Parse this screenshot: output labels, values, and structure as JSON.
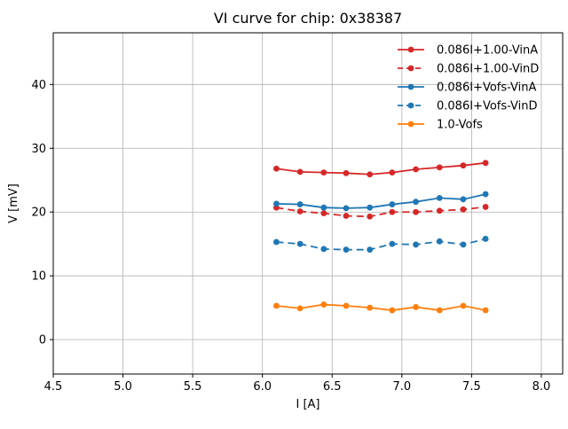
{
  "chart_data": {
    "type": "line",
    "title": "VI curve for chip: 0x38387",
    "xlabel": "I [A]",
    "ylabel": "V [mV]",
    "xlim": [
      4.5,
      8.153
    ],
    "ylim": [
      -5.4,
      48.1
    ],
    "x_ticks": [
      4.5,
      5.0,
      5.5,
      6.0,
      6.5,
      7.0,
      7.5,
      8.0
    ],
    "x_tick_labels": [
      "4.5",
      "5.0",
      "5.5",
      "6.0",
      "6.5",
      "7.0",
      "7.5",
      "8.0"
    ],
    "y_ticks": [
      0,
      10,
      20,
      30,
      40
    ],
    "y_tick_labels": [
      "0",
      "10",
      "20",
      "30",
      "40"
    ],
    "grid": true,
    "legend_position": "upper right",
    "x": [
      6.1,
      6.27,
      6.44,
      6.6,
      6.77,
      6.93,
      7.1,
      7.27,
      7.44,
      7.6
    ],
    "series": [
      {
        "name": "0.086I+1.00-VinA",
        "color": "#d62728",
        "style": "solid",
        "marker": "circle",
        "values": [
          26.8,
          26.3,
          26.2,
          26.1,
          25.9,
          26.2,
          26.7,
          27.0,
          27.3,
          27.7
        ]
      },
      {
        "name": "0.086I+1.00-VinD",
        "color": "#d62728",
        "style": "dashed",
        "marker": "circle",
        "values": [
          20.7,
          20.1,
          19.8,
          19.4,
          19.3,
          20.0,
          20.0,
          20.2,
          20.4,
          20.8
        ]
      },
      {
        "name": "0.086I+Vofs-VinA",
        "color": "#1f77b4",
        "style": "solid",
        "marker": "circle",
        "values": [
          21.3,
          21.2,
          20.7,
          20.6,
          20.7,
          21.2,
          21.6,
          22.2,
          22.0,
          22.8
        ]
      },
      {
        "name": "0.086I+Vofs-VinD",
        "color": "#1f77b4",
        "style": "dashed",
        "marker": "circle",
        "values": [
          15.3,
          15.0,
          14.2,
          14.1,
          14.1,
          15.0,
          14.9,
          15.4,
          14.9,
          15.8
        ]
      },
      {
        "name": "1.0-Vofs",
        "color": "#ff7f0e",
        "style": "solid",
        "marker": "circle",
        "values": [
          5.3,
          4.9,
          5.5,
          5.3,
          5.0,
          4.6,
          5.1,
          4.6,
          5.3,
          4.6
        ]
      }
    ],
    "colors": {
      "grid": "#b0b0b0",
      "spine": "#000000",
      "background": "#ffffff"
    }
  }
}
